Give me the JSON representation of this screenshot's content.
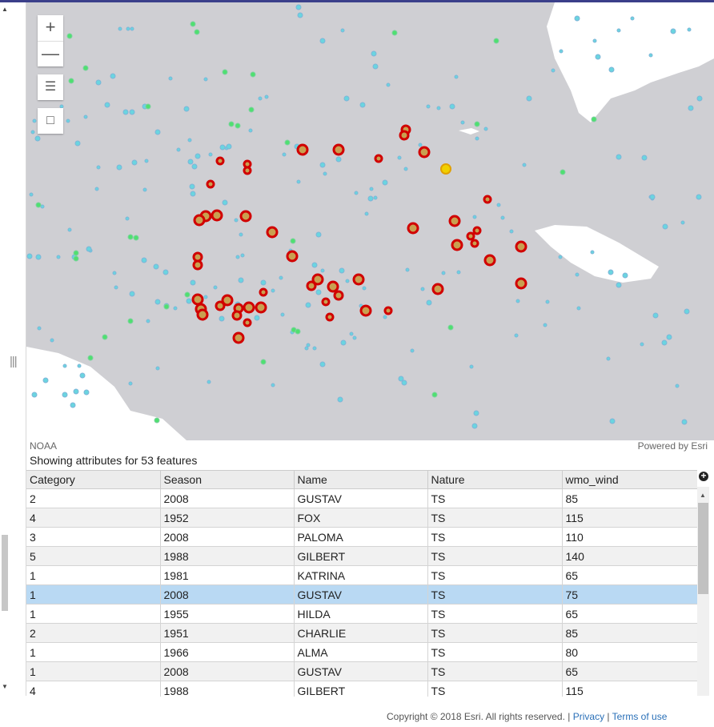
{
  "map": {
    "zoom_in": "+",
    "zoom_out": "—",
    "attribution_left": "NOAA",
    "attribution_right": "Powered by Esri"
  },
  "table": {
    "title": "Showing attributes for 53 features",
    "columns": [
      "Category",
      "Season",
      "Name",
      "Nature",
      "wmo_wind"
    ],
    "rows": [
      [
        "2",
        "2008",
        "GUSTAV",
        "TS",
        "85"
      ],
      [
        "4",
        "1952",
        "FOX",
        "TS",
        "115"
      ],
      [
        "3",
        "2008",
        "PALOMA",
        "TS",
        "110"
      ],
      [
        "5",
        "1988",
        "GILBERT",
        "TS",
        "140"
      ],
      [
        "1",
        "1981",
        "KATRINA",
        "TS",
        "65"
      ],
      [
        "1",
        "2008",
        "GUSTAV",
        "TS",
        "75"
      ],
      [
        "1",
        "1955",
        "HILDA",
        "TS",
        "65"
      ],
      [
        "2",
        "1951",
        "CHARLIE",
        "TS",
        "85"
      ],
      [
        "1",
        "1966",
        "ALMA",
        "TS",
        "80"
      ],
      [
        "1",
        "2008",
        "GUSTAV",
        "TS",
        "65"
      ],
      [
        "4",
        "1988",
        "GILBERT",
        "TS",
        "115"
      ]
    ],
    "selected_row": 5
  },
  "footer": {
    "copyright": "Copyright © 2018 Esri. All rights reserved. |",
    "privacy": "Privacy",
    "separator": "|",
    "terms": "Terms of use"
  },
  "colors": {
    "selected_point_fill": "#e0a830",
    "selected_point_halo": "#d10000",
    "highlight_point": "#f0d000",
    "land": "#ffffff",
    "sea": "#cfcfd3"
  }
}
